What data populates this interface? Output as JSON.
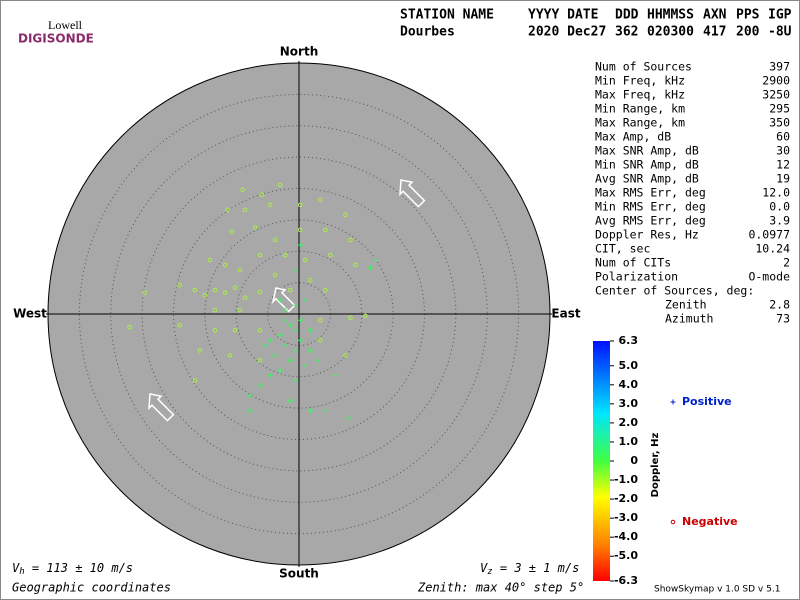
{
  "logo": {
    "top": "Lowell",
    "bottom": "DIGISONDE"
  },
  "header": {
    "columns": [
      "STATION NAME",
      "YYYY DATE",
      "DDD",
      "HHMMSS",
      "AXN",
      "PPS",
      "IGP"
    ],
    "values": [
      "Dourbes",
      "2020 Dec27",
      "362",
      "020300",
      "417",
      "200",
      "-8U"
    ]
  },
  "stats": {
    "rows": [
      [
        "Num of Sources",
        "397"
      ],
      [
        "Min Freq, kHz",
        "2900"
      ],
      [
        "Max Freq, kHz",
        "3250"
      ],
      [
        "Min Range, km",
        "295"
      ],
      [
        "Max Range, km",
        "350"
      ],
      [
        "Max Amp, dB",
        "60"
      ],
      [
        "Max SNR Amp, dB",
        "30"
      ],
      [
        "Min SNR Amp, dB",
        "12"
      ],
      [
        "Avg SNR Amp, dB",
        "19"
      ],
      [
        "Max RMS Err, deg",
        "12.0"
      ],
      [
        "Min RMS Err, deg",
        "0.0"
      ],
      [
        "Avg RMS Err, deg",
        "3.9"
      ],
      [
        "Doppler Res, Hz",
        "0.0977"
      ],
      [
        "CIT, sec",
        "10.24"
      ],
      [
        "Num of CITs",
        "2"
      ],
      [
        "Polarization",
        "O-mode"
      ]
    ],
    "center_title": "Center of Sources, deg:",
    "center_rows": [
      [
        "Zenith",
        "2.8"
      ],
      [
        "Azimuth",
        "73"
      ]
    ]
  },
  "chart_data": {
    "type": "scatter",
    "directions": {
      "north": "North",
      "south": "South",
      "west": "West",
      "east": "East"
    },
    "xlim": [
      -40,
      40
    ],
    "ylim": [
      -40,
      40
    ],
    "rings": [
      5,
      10,
      15,
      20,
      25,
      30,
      35,
      40
    ],
    "series": [
      {
        "name": "Positive",
        "marker": "+",
        "color": "#44ee66",
        "legend_color": "#0022cc",
        "x": [
          -2.2,
          -1.4,
          -0.6,
          0.2,
          -3.0,
          -4.6,
          -2.2,
          -0.6,
          -3.8,
          -5.4,
          0.2,
          1.8,
          -1.4,
          -3.0,
          -4.6,
          -0.6,
          1.0,
          -6.2,
          -7.8,
          -7.8,
          -1.4,
          1.8,
          4.2,
          7.8,
          3.0,
          5.8,
          12.2,
          11.4,
          1.0,
          -0.6,
          -2.2,
          0.2,
          -0.6,
          -3.0,
          1.8
        ],
        "y": [
          -1.0,
          -1.8,
          -2.6,
          -1.0,
          -3.4,
          -4.2,
          -5.0,
          -5.8,
          -6.6,
          -5.0,
          -4.2,
          -2.6,
          -7.4,
          -9.0,
          -9.8,
          -10.6,
          -8.2,
          -11.4,
          -13.0,
          -15.4,
          -13.8,
          -15.4,
          -15.4,
          -16.6,
          -7.4,
          -9.8,
          8.6,
          7.4,
          2.2,
          1.4,
          0.6,
          11.0,
          7.0,
          2.2,
          -5.8
        ]
      },
      {
        "name": "Negative",
        "marker": "o",
        "color": "#aaee44",
        "legend_color": "#cc0000",
        "x": [
          -9.0,
          -3.0,
          -5.9,
          -11.4,
          -8.6,
          -4.6,
          0.2,
          3.4,
          7.4,
          -10.7,
          -7.0,
          -3.8,
          0.2,
          4.2,
          8.2,
          -14.2,
          -11.8,
          -9.4,
          -6.2,
          -2.2,
          1.0,
          5.0,
          9.0,
          -24.6,
          -19.0,
          -16.6,
          -15.0,
          -13.4,
          -11.8,
          -10.2,
          -8.6,
          -6.2,
          -13.4,
          -9.4,
          -27.0,
          -19.0,
          -13.4,
          -10.2,
          -6.2,
          3.4,
          8.2,
          10.6,
          -15.8,
          -11.0,
          -6.2,
          3.4,
          7.4,
          -16.6,
          -1.4,
          1.8,
          4.2,
          -3.8
        ],
        "y": [
          19.8,
          20.6,
          19.0,
          16.6,
          16.6,
          17.4,
          17.4,
          18.2,
          15.8,
          13.1,
          13.8,
          11.8,
          13.4,
          13.4,
          11.8,
          8.6,
          7.8,
          7.0,
          9.4,
          9.4,
          8.6,
          9.4,
          7.8,
          3.4,
          4.6,
          3.8,
          3.0,
          3.8,
          3.4,
          4.2,
          2.6,
          3.5,
          0.6,
          0.6,
          -2.1,
          -1.8,
          -2.6,
          -2.6,
          -2.6,
          -1.0,
          -0.6,
          -0.3,
          -5.8,
          -6.6,
          -7.4,
          -4.2,
          -6.6,
          -10.6,
          3.8,
          5.4,
          3.8,
          6.2
        ]
      }
    ],
    "colorbar": {
      "label": "Doppler, Hz",
      "lim": [
        -6.3,
        6.3
      ],
      "ticks": [
        6.3,
        {
          "value": 5,
          "label": "5.0"
        },
        {
          "value": 4,
          "label": "4.0"
        },
        {
          "value": 3,
          "label": "3.0"
        },
        {
          "value": 2,
          "label": "2.0"
        },
        {
          "value": 1,
          "label": "1.0"
        },
        0,
        {
          "value": -1,
          "label": "-1.0"
        },
        {
          "value": -2,
          "label": "-2.0"
        },
        {
          "value": -3,
          "label": "-3.0"
        },
        {
          "value": -4,
          "label": "-4.0"
        },
        {
          "value": -5,
          "label": "-5.0"
        },
        -6.3
      ]
    }
  },
  "footer": {
    "vh": [
      "V",
      "h",
      " = 113 ± 10 m/s"
    ],
    "vz": [
      "V",
      "z",
      " = 3 ± 1 m/s"
    ],
    "coords": "Geographic coordinates",
    "zenith": "Zenith: max 40°  step 5°",
    "version": "ShowSkymap v 1.0  SD v 5.1"
  }
}
